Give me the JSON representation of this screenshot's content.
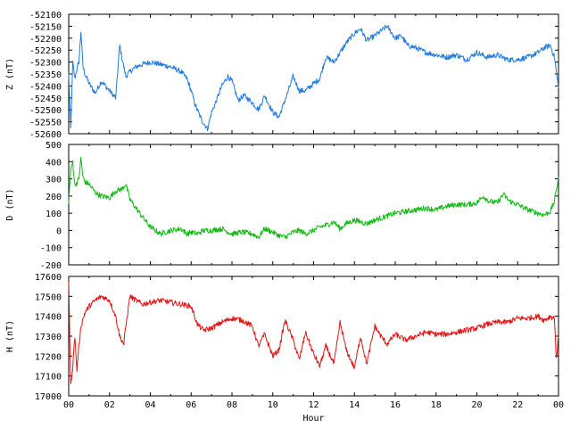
{
  "chart_data": [
    {
      "type": "line",
      "ylabel": "Z (nT)",
      "ylim": [
        -52600,
        -52100
      ],
      "yticks": [
        "-52100",
        "-52150",
        "-52200",
        "-52250",
        "-52300",
        "-52350",
        "-52400",
        "-52450",
        "-52500",
        "-52550",
        "-52600"
      ],
      "xlim": [
        0,
        24
      ],
      "series": [
        {
          "color": "#1f7ae0",
          "x": [
            0,
            0.1,
            0.2,
            0.3,
            0.4,
            0.5,
            0.6,
            0.7,
            0.8,
            1.0,
            1.3,
            1.6,
            2.0,
            2.3,
            2.5,
            2.6,
            2.8,
            3.0,
            3.3,
            3.6,
            4.0,
            4.5,
            5.0,
            5.5,
            5.8,
            6.0,
            6.2,
            6.5,
            6.8,
            7.0,
            7.2,
            7.5,
            7.8,
            8.0,
            8.3,
            8.6,
            9.0,
            9.3,
            9.6,
            10.0,
            10.3,
            10.6,
            11.0,
            11.3,
            11.6,
            12.0,
            12.3,
            12.6,
            13.0,
            13.3,
            13.6,
            14.0,
            14.3,
            14.6,
            15.0,
            15.3,
            15.6,
            16.0,
            16.3,
            16.6,
            17.0,
            17.5,
            18.0,
            18.5,
            19.0,
            19.5,
            20.0,
            20.5,
            21.0,
            21.5,
            22.0,
            22.5,
            23.0,
            23.3,
            23.6,
            23.8,
            24.0
          ],
          "y": [
            -52350,
            -52580,
            -52300,
            -52370,
            -52330,
            -52300,
            -52170,
            -52320,
            -52350,
            -52390,
            -52430,
            -52380,
            -52420,
            -52450,
            -52230,
            -52280,
            -52360,
            -52340,
            -52320,
            -52310,
            -52300,
            -52310,
            -52320,
            -52340,
            -52370,
            -52420,
            -52480,
            -52540,
            -52580,
            -52510,
            -52470,
            -52400,
            -52360,
            -52380,
            -52460,
            -52440,
            -52470,
            -52500,
            -52440,
            -52510,
            -52530,
            -52460,
            -52360,
            -52420,
            -52420,
            -52390,
            -52370,
            -52280,
            -52300,
            -52260,
            -52220,
            -52180,
            -52160,
            -52210,
            -52190,
            -52170,
            -52150,
            -52200,
            -52190,
            -52230,
            -52240,
            -52260,
            -52270,
            -52280,
            -52270,
            -52290,
            -52260,
            -52280,
            -52270,
            -52290,
            -52290,
            -52280,
            -52260,
            -52240,
            -52230,
            -52280,
            -52410
          ]
        }
      ]
    },
    {
      "type": "line",
      "ylabel": "D (nT)",
      "ylim": [
        -200,
        500
      ],
      "yticks": [
        "500",
        "400",
        "300",
        "200",
        "100",
        "0",
        "-100",
        "-200"
      ],
      "xlim": [
        0,
        24
      ],
      "series": [
        {
          "color": "#14b814",
          "x": [
            0,
            0.1,
            0.2,
            0.3,
            0.5,
            0.6,
            0.7,
            0.8,
            1.0,
            1.3,
            1.6,
            2.0,
            2.3,
            2.6,
            2.8,
            3.0,
            3.3,
            3.6,
            4.0,
            4.5,
            5.0,
            5.5,
            5.8,
            6.0,
            6.3,
            6.6,
            7.0,
            7.5,
            8.0,
            8.5,
            9.0,
            9.3,
            9.6,
            10.0,
            10.3,
            10.6,
            11.0,
            11.3,
            11.6,
            12.0,
            12.3,
            12.6,
            13.0,
            13.3,
            13.6,
            14.0,
            14.3,
            14.6,
            15.0,
            15.5,
            16.0,
            16.5,
            17.0,
            17.5,
            18.0,
            18.5,
            19.0,
            19.5,
            20.0,
            20.3,
            20.6,
            21.0,
            21.3,
            21.6,
            22.0,
            22.5,
            23.0,
            23.3,
            23.6,
            23.8,
            24.0
          ],
          "y": [
            170,
            350,
            400,
            260,
            300,
            420,
            310,
            280,
            270,
            220,
            200,
            190,
            230,
            240,
            270,
            180,
            130,
            80,
            20,
            -20,
            0,
            10,
            -20,
            -10,
            -20,
            0,
            0,
            10,
            -20,
            -10,
            -20,
            -40,
            10,
            -10,
            -30,
            -40,
            -10,
            0,
            -20,
            0,
            20,
            30,
            50,
            10,
            40,
            60,
            50,
            40,
            60,
            80,
            100,
            110,
            120,
            130,
            120,
            140,
            150,
            150,
            160,
            200,
            170,
            160,
            210,
            170,
            150,
            120,
            100,
            90,
            110,
            170,
            310
          ]
        }
      ]
    },
    {
      "type": "line",
      "ylabel": "H (nT)",
      "xlabel": "Hour",
      "ylim": [
        17000,
        17600
      ],
      "yticks": [
        "17600",
        "17500",
        "17400",
        "17300",
        "17200",
        "17100",
        "17000"
      ],
      "xlim": [
        0,
        24
      ],
      "xticks": [
        "00",
        "02",
        "04",
        "06",
        "08",
        "10",
        "12",
        "14",
        "16",
        "18",
        "20",
        "22",
        "00"
      ],
      "series": [
        {
          "color": "#e01414",
          "x": [
            0,
            0.1,
            0.2,
            0.3,
            0.4,
            0.5,
            0.6,
            0.8,
            1.0,
            1.3,
            1.6,
            2.0,
            2.3,
            2.5,
            2.7,
            2.8,
            3.0,
            3.3,
            3.6,
            4.0,
            4.5,
            5.0,
            5.5,
            6.0,
            6.3,
            6.6,
            7.0,
            7.5,
            8.0,
            8.5,
            9.0,
            9.3,
            9.6,
            10.0,
            10.3,
            10.6,
            11.0,
            11.3,
            11.6,
            12.0,
            12.3,
            12.6,
            13.0,
            13.3,
            13.6,
            14.0,
            14.3,
            14.6,
            15.0,
            15.3,
            15.6,
            16.0,
            16.5,
            17.0,
            17.5,
            18.0,
            18.5,
            19.0,
            19.5,
            20.0,
            20.5,
            21.0,
            21.5,
            22.0,
            22.5,
            23.0,
            23.3,
            23.6,
            23.8,
            23.9,
            24.0
          ],
          "y": [
            17570,
            17050,
            17150,
            17300,
            17130,
            17250,
            17350,
            17420,
            17450,
            17480,
            17500,
            17480,
            17400,
            17300,
            17260,
            17350,
            17500,
            17480,
            17460,
            17470,
            17480,
            17470,
            17460,
            17450,
            17360,
            17330,
            17340,
            17370,
            17390,
            17380,
            17350,
            17250,
            17310,
            17200,
            17230,
            17380,
            17280,
            17180,
            17320,
            17210,
            17150,
            17250,
            17160,
            17370,
            17230,
            17140,
            17300,
            17160,
            17350,
            17300,
            17260,
            17310,
            17280,
            17300,
            17320,
            17310,
            17310,
            17320,
            17330,
            17340,
            17360,
            17370,
            17370,
            17390,
            17390,
            17400,
            17380,
            17400,
            17390,
            17180,
            17300
          ]
        }
      ]
    }
  ]
}
